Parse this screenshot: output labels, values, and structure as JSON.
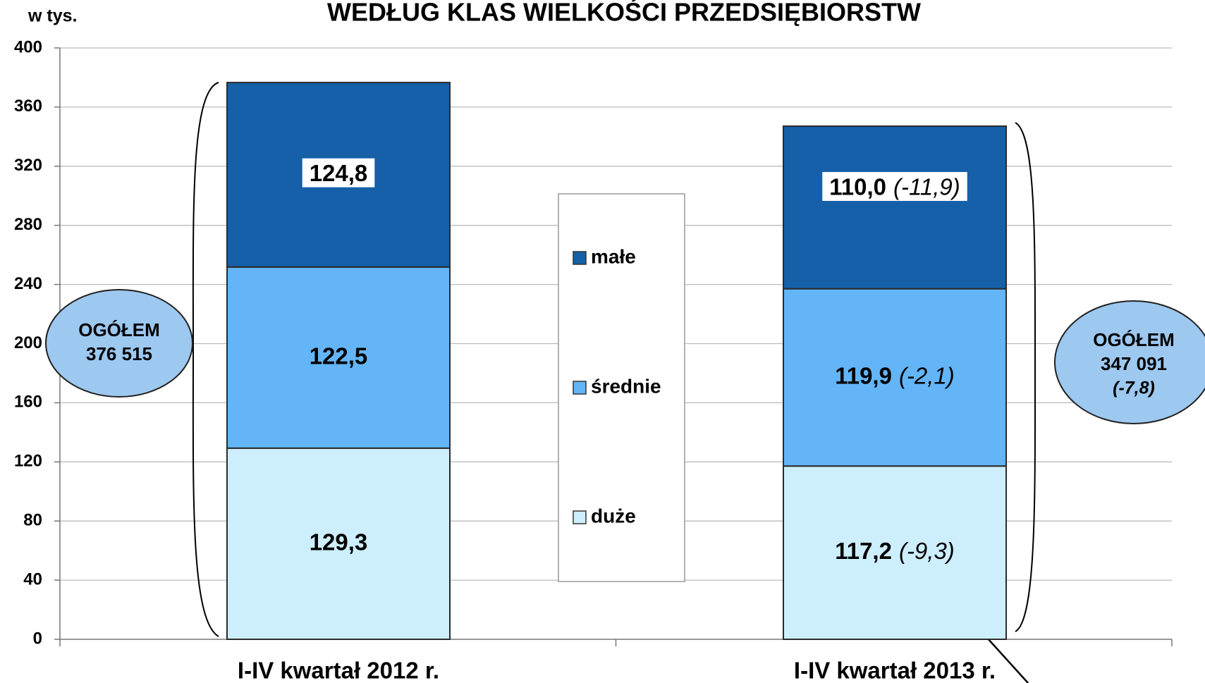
{
  "chart_data": {
    "type": "bar",
    "stacked": true,
    "title": "WEDŁUG KLAS WIELKOŚCI PRZEDSIĘBIORSTW",
    "y_label": "w tys.",
    "categories": [
      "I-IV kwartał 2012 r.",
      "I-IV kwartał 2013 r."
    ],
    "series": [
      {
        "name": "duże",
        "color": "#cdeefc",
        "values": [
          129.3,
          117.2
        ],
        "value_labels": [
          "129,3",
          "117,2"
        ],
        "change_label": "(-9,3)"
      },
      {
        "name": "średnie",
        "color": "#63b5f7",
        "values": [
          122.5,
          119.9
        ],
        "value_labels": [
          "122,5",
          "119,9"
        ],
        "change_label": "(-2,1)"
      },
      {
        "name": "małe",
        "color": "#1560a8",
        "values": [
          124.8,
          110.0
        ],
        "value_labels": [
          "124,8",
          "110,0"
        ],
        "change_label": "(-11,9)"
      }
    ],
    "totals": [
      {
        "label": "OGÓŁEM",
        "value": "376 515"
      },
      {
        "label": "OGÓŁEM",
        "value": "347 091",
        "change": "(-7,8)"
      }
    ],
    "ylim": [
      0,
      400
    ],
    "yticks": [
      0,
      40,
      80,
      120,
      160,
      200,
      240,
      280,
      320,
      360,
      400
    ],
    "grid": true
  }
}
